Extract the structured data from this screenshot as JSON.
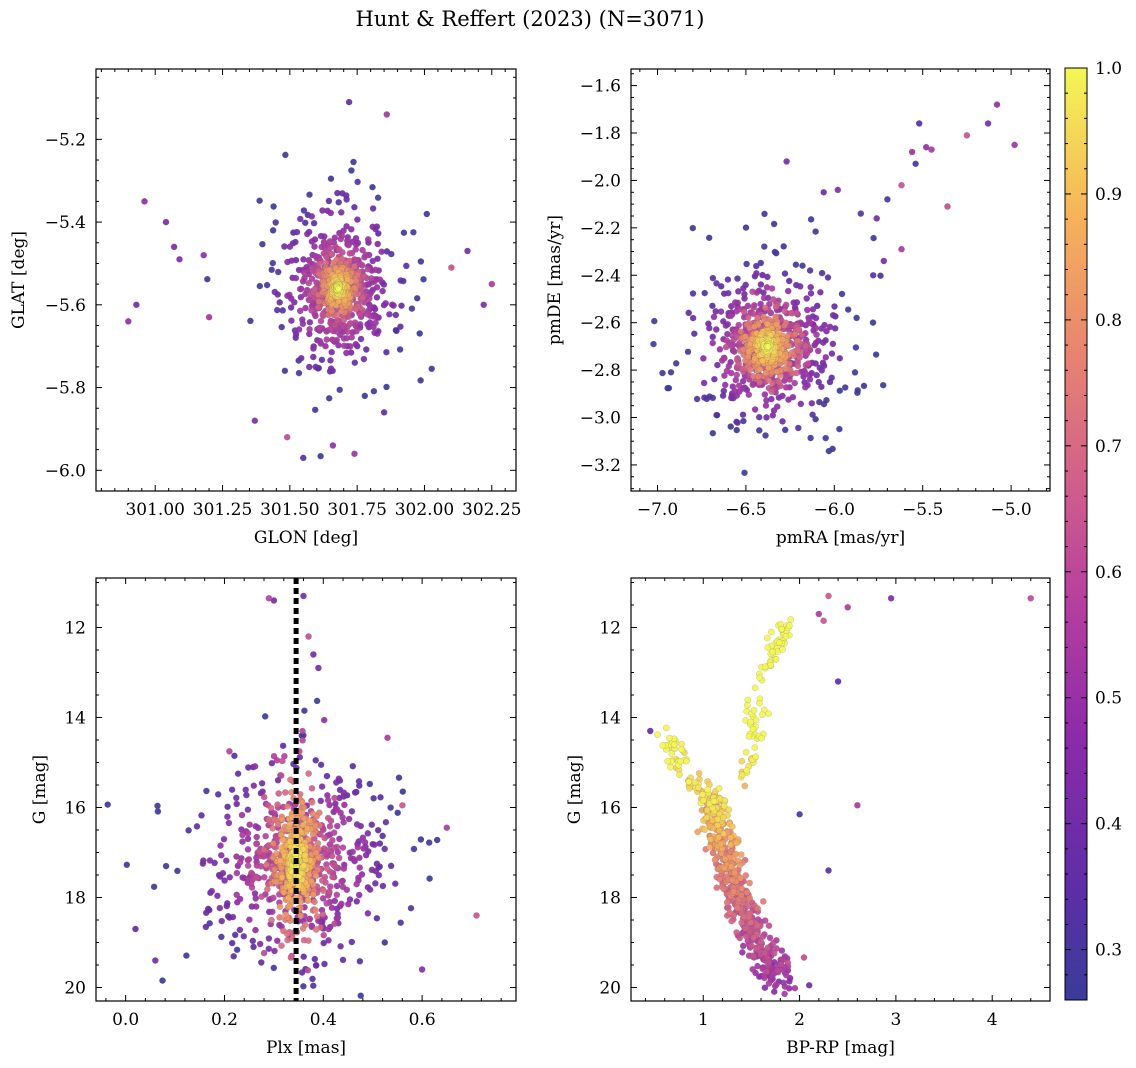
{
  "figure_title": "Hunt & Reffert (2023) (N=3071)",
  "colormap": "plasma",
  "colorbar": {
    "range": [
      0.26,
      1.0
    ],
    "ticks": [
      0.3,
      0.4,
      0.5,
      0.6,
      0.7,
      0.8,
      0.9,
      1.0
    ],
    "tick_labels": [
      "0.3",
      "0.4",
      "0.5",
      "0.6",
      "0.7",
      "0.8",
      "0.9",
      "1.0"
    ]
  },
  "colors": {
    "plasma_low": "#2f3e9e",
    "plasma_mid": "#b83ea3",
    "plasma_high": "#f4f654",
    "reference_line": "#000000"
  },
  "chart_data": [
    {
      "type": "scatter",
      "xlabel": "GLON [deg]",
      "ylabel": "GLAT [deg]",
      "xlim": [
        300.78,
        302.34
      ],
      "ylim": [
        -6.05,
        -5.03
      ],
      "xticks": [
        301.0,
        301.25,
        301.5,
        301.75,
        302.0,
        302.25
      ],
      "xtick_labels": [
        "301.00",
        "301.25",
        "301.50",
        "301.75",
        "302.00",
        "302.25"
      ],
      "yticks": [
        -6.0,
        -5.8,
        -5.6,
        -5.4,
        -5.2
      ],
      "ytick_labels": [
        "−6.0",
        "−5.8",
        "−5.6",
        "−5.4",
        "−5.2"
      ],
      "y_inverted": false,
      "cluster_center": [
        301.68,
        -5.56
      ],
      "core_spread": [
        0.05,
        0.045
      ],
      "halo_spread": [
        0.14,
        0.13
      ],
      "outlier_points": [
        [
          300.9,
          -5.64
        ],
        [
          300.93,
          -5.6
        ],
        [
          300.96,
          -5.35
        ],
        [
          301.04,
          -5.4
        ],
        [
          301.07,
          -5.46
        ],
        [
          301.09,
          -5.49
        ],
        [
          301.18,
          -5.48
        ],
        [
          301.2,
          -5.63
        ],
        [
          302.1,
          -5.51
        ],
        [
          302.16,
          -5.47
        ],
        [
          302.22,
          -5.6
        ],
        [
          302.25,
          -5.55
        ],
        [
          301.72,
          -5.11
        ],
        [
          301.86,
          -5.14
        ],
        [
          301.49,
          -5.92
        ],
        [
          301.55,
          -5.97
        ],
        [
          301.66,
          -5.94
        ],
        [
          301.74,
          -5.96
        ],
        [
          301.37,
          -5.88
        ],
        [
          301.85,
          -5.86
        ]
      ]
    },
    {
      "type": "scatter",
      "xlabel": "pmRA [mas/yr]",
      "ylabel": "pmDE [mas/yr]",
      "xlim": [
        -7.15,
        -4.78
      ],
      "ylim": [
        -3.31,
        -1.53
      ],
      "xticks": [
        -7.0,
        -6.5,
        -6.0,
        -5.5,
        -5.0
      ],
      "xtick_labels": [
        "−7.0",
        "−6.5",
        "−6.0",
        "−5.5",
        "−5.0"
      ],
      "yticks": [
        -3.2,
        -3.0,
        -2.8,
        -2.6,
        -2.4,
        -2.2,
        -2.0,
        -1.8,
        -1.6
      ],
      "ytick_labels": [
        "−3.2",
        "−3.0",
        "−2.8",
        "−2.6",
        "−2.4",
        "−2.2",
        "−2.0",
        "−1.8",
        "−1.6"
      ],
      "y_inverted": false,
      "cluster_center": [
        -6.38,
        -2.7
      ],
      "core_spread": [
        0.11,
        0.1
      ],
      "halo_spread": [
        0.25,
        0.2
      ],
      "outlier_points": [
        [
          -6.27,
          -1.92
        ],
        [
          -6.06,
          -2.05
        ],
        [
          -5.98,
          -2.04
        ],
        [
          -5.85,
          -2.14
        ],
        [
          -5.76,
          -2.16
        ],
        [
          -5.7,
          -2.08
        ],
        [
          -5.62,
          -2.02
        ],
        [
          -5.56,
          -1.88
        ],
        [
          -5.54,
          -1.93
        ],
        [
          -5.52,
          -1.76
        ],
        [
          -5.48,
          -1.86
        ],
        [
          -5.45,
          -1.87
        ],
        [
          -5.36,
          -2.11
        ],
        [
          -5.25,
          -1.81
        ],
        [
          -5.13,
          -1.76
        ],
        [
          -5.08,
          -1.68
        ],
        [
          -4.98,
          -1.85
        ],
        [
          -5.62,
          -2.29
        ],
        [
          -5.78,
          -2.4
        ],
        [
          -5.72,
          -2.34
        ]
      ]
    },
    {
      "type": "scatter",
      "xlabel": "Plx [mas]",
      "ylabel": "G [mag]",
      "xlim": [
        -0.06,
        0.79
      ],
      "ylim": [
        10.9,
        20.3
      ],
      "xticks": [
        0.0,
        0.2,
        0.4,
        0.6
      ],
      "xtick_labels": [
        "0.0",
        "0.2",
        "0.4",
        "0.6"
      ],
      "yticks": [
        12,
        14,
        16,
        18,
        20
      ],
      "ytick_labels": [
        "12",
        "14",
        "16",
        "18",
        "20"
      ],
      "y_inverted": true,
      "reference_line_x": 0.345,
      "cluster_center": [
        0.345,
        17.2
      ],
      "core_spread": [
        0.04,
        1.2
      ],
      "halo_spread": [
        0.12,
        1.4
      ],
      "outlier_points": [
        [
          0.29,
          11.35
        ],
        [
          0.3,
          11.4
        ],
        [
          0.36,
          11.3
        ],
        [
          0.37,
          12.2
        ],
        [
          0.38,
          12.6
        ],
        [
          0.39,
          12.9
        ],
        [
          0.53,
          14.45
        ],
        [
          0.21,
          14.75
        ],
        [
          0.22,
          14.85
        ],
        [
          0.56,
          15.95
        ],
        [
          0.65,
          16.45
        ],
        [
          0.02,
          18.7
        ],
        [
          0.71,
          18.4
        ],
        [
          0.06,
          19.4
        ],
        [
          0.6,
          19.6
        ]
      ]
    },
    {
      "type": "scatter",
      "xlabel": "BP-RP [mag]",
      "ylabel": "G [mag]",
      "xlim": [
        0.25,
        4.6
      ],
      "ylim": [
        10.9,
        20.3
      ],
      "xticks": [
        1,
        2,
        3,
        4
      ],
      "xtick_labels": [
        "1",
        "2",
        "3",
        "4"
      ],
      "yticks": [
        12,
        14,
        16,
        18,
        20
      ],
      "ytick_labels": [
        "12",
        "14",
        "16",
        "18",
        "20"
      ],
      "y_inverted": true,
      "main_sequence": [
        [
          1.1,
          15.8
        ],
        [
          1.15,
          16.5
        ],
        [
          1.25,
          17.2
        ],
        [
          1.35,
          17.9
        ],
        [
          1.5,
          18.6
        ],
        [
          1.65,
          19.3
        ],
        [
          1.8,
          19.9
        ]
      ],
      "upper_sequence": [
        [
          0.6,
          14.4
        ],
        [
          0.75,
          14.9
        ],
        [
          0.9,
          15.4
        ],
        [
          1.05,
          15.7
        ]
      ],
      "giant_branch": [
        [
          1.4,
          15.3
        ],
        [
          1.5,
          14.5
        ],
        [
          1.55,
          13.7
        ],
        [
          1.65,
          13.0
        ],
        [
          1.75,
          12.4
        ],
        [
          1.85,
          12.0
        ]
      ],
      "outlier_points": [
        [
          0.45,
          14.3
        ],
        [
          2.3,
          11.3
        ],
        [
          2.5,
          11.55
        ],
        [
          2.25,
          11.85
        ],
        [
          2.95,
          11.35
        ],
        [
          4.4,
          11.35
        ],
        [
          2.2,
          11.7
        ],
        [
          2.4,
          13.2
        ],
        [
          2.6,
          15.95
        ],
        [
          2.0,
          16.15
        ],
        [
          2.3,
          17.4
        ],
        [
          2.1,
          19.95
        ]
      ]
    }
  ]
}
